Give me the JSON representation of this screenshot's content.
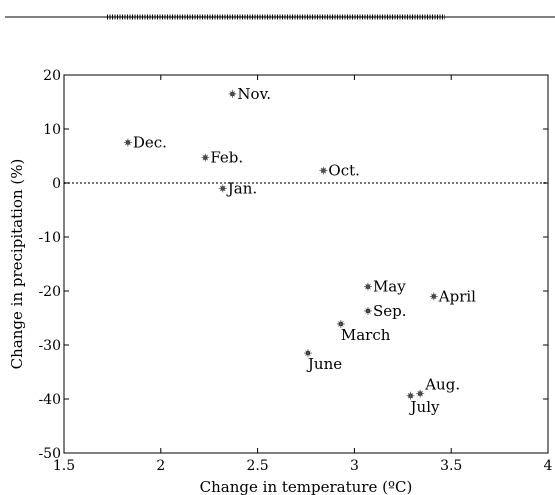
{
  "chart_data": {
    "type": "scatter",
    "title": "",
    "xlabel": "Change in temperature (ºC)",
    "ylabel": "Change in precipitation (%)",
    "xlim": [
      1.5,
      4
    ],
    "ylim": [
      -50,
      20
    ],
    "xticks": [
      1.5,
      2,
      2.5,
      3,
      3.5,
      4
    ],
    "xtick_labels": [
      "1.5",
      "2",
      "2.5",
      "3",
      "3.5",
      "4"
    ],
    "yticks": [
      20,
      10,
      0,
      -10,
      -20,
      -30,
      -40,
      -50
    ],
    "ytick_labels": [
      "20",
      "10",
      "0",
      "-10",
      "-20",
      "-30",
      "-40",
      "-50"
    ],
    "reference_line_y": 0,
    "grid": false,
    "points": [
      {
        "label": "Nov.",
        "x": 2.37,
        "y": 16.5,
        "label_side": "right"
      },
      {
        "label": "Dec.",
        "x": 1.83,
        "y": 7.5,
        "label_side": "right"
      },
      {
        "label": "Feb.",
        "x": 2.23,
        "y": 4.7,
        "label_side": "right"
      },
      {
        "label": "Oct.",
        "x": 2.84,
        "y": 2.3,
        "label_side": "right"
      },
      {
        "label": "Jan.",
        "x": 2.32,
        "y": -1.0,
        "label_side": "right"
      },
      {
        "label": "May",
        "x": 3.07,
        "y": -19.2,
        "label_side": "right"
      },
      {
        "label": "April",
        "x": 3.41,
        "y": -21.0,
        "label_side": "right"
      },
      {
        "label": "Sep.",
        "x": 3.07,
        "y": -23.7,
        "label_side": "right"
      },
      {
        "label": "March",
        "x": 2.93,
        "y": -26.1,
        "label_side": "below"
      },
      {
        "label": "June",
        "x": 2.76,
        "y": -31.5,
        "label_side": "below"
      },
      {
        "label": "Aug.",
        "x": 3.34,
        "y": -39.0,
        "label_side": "above"
      },
      {
        "label": "July",
        "x": 3.29,
        "y": -39.4,
        "label_side": "below"
      }
    ]
  }
}
